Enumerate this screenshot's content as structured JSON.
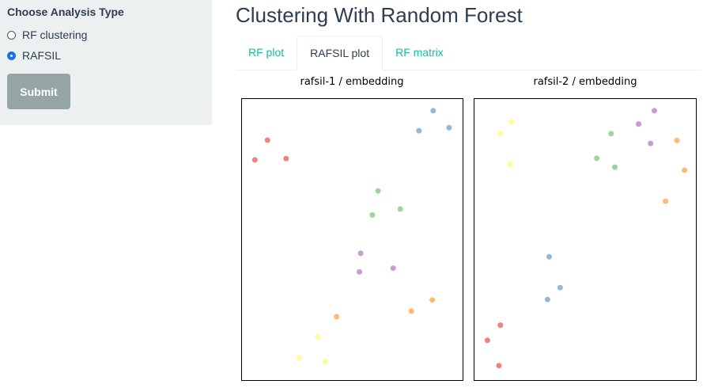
{
  "sidebar": {
    "title": "Choose Analysis Type",
    "options": [
      {
        "label": "RF clustering",
        "checked": false
      },
      {
        "label": "RAFSIL",
        "checked": true
      }
    ],
    "submit_label": "Submit"
  },
  "page": {
    "title": "Clustering With Random Forest"
  },
  "tabs": [
    {
      "label": "RF plot",
      "active": false
    },
    {
      "label": "RAFSIL plot",
      "active": true
    },
    {
      "label": "RF matrix",
      "active": false
    }
  ],
  "colors": {
    "red": "#e41a1c",
    "blue": "#377eb8",
    "green": "#4daf4a",
    "purple": "#984ea3",
    "orange": "#ff7f00",
    "yellow": "#ffff33"
  },
  "chart_data": [
    {
      "type": "scatter",
      "title": "rafsil-1 / embedding",
      "xlim": [
        0,
        1
      ],
      "ylim": [
        0,
        1
      ],
      "points": [
        {
          "x": 0.886,
          "y": 0.977,
          "color": "blue"
        },
        {
          "x": 0.962,
          "y": 0.914,
          "color": "blue"
        },
        {
          "x": 0.818,
          "y": 0.903,
          "color": "blue"
        },
        {
          "x": 0.095,
          "y": 0.868,
          "color": "red"
        },
        {
          "x": 0.035,
          "y": 0.795,
          "color": "red"
        },
        {
          "x": 0.184,
          "y": 0.8,
          "color": "red"
        },
        {
          "x": 0.623,
          "y": 0.68,
          "color": "green"
        },
        {
          "x": 0.729,
          "y": 0.613,
          "color": "green"
        },
        {
          "x": 0.596,
          "y": 0.591,
          "color": "green"
        },
        {
          "x": 0.54,
          "y": 0.449,
          "color": "purple"
        },
        {
          "x": 0.695,
          "y": 0.394,
          "color": "purple"
        },
        {
          "x": 0.534,
          "y": 0.38,
          "color": "purple"
        },
        {
          "x": 0.882,
          "y": 0.276,
          "color": "orange"
        },
        {
          "x": 0.782,
          "y": 0.235,
          "color": "orange"
        },
        {
          "x": 0.425,
          "y": 0.214,
          "color": "orange"
        },
        {
          "x": 0.336,
          "y": 0.139,
          "color": "yellow"
        },
        {
          "x": 0.246,
          "y": 0.062,
          "color": "yellow"
        },
        {
          "x": 0.371,
          "y": 0.048,
          "color": "yellow"
        }
      ]
    },
    {
      "type": "scatter",
      "title": "rafsil-2 / embedding",
      "xlim": [
        0,
        1
      ],
      "ylim": [
        0,
        1
      ],
      "points": [
        {
          "x": 0.829,
          "y": 0.977,
          "color": "purple"
        },
        {
          "x": 0.754,
          "y": 0.928,
          "color": "purple"
        },
        {
          "x": 0.811,
          "y": 0.856,
          "color": "purple"
        },
        {
          "x": 0.15,
          "y": 0.936,
          "color": "yellow"
        },
        {
          "x": 0.097,
          "y": 0.892,
          "color": "yellow"
        },
        {
          "x": 0.143,
          "y": 0.779,
          "color": "yellow"
        },
        {
          "x": 0.623,
          "y": 0.892,
          "color": "green"
        },
        {
          "x": 0.555,
          "y": 0.801,
          "color": "green"
        },
        {
          "x": 0.641,
          "y": 0.768,
          "color": "green"
        },
        {
          "x": 0.936,
          "y": 0.867,
          "color": "orange"
        },
        {
          "x": 0.972,
          "y": 0.757,
          "color": "orange"
        },
        {
          "x": 0.882,
          "y": 0.642,
          "color": "orange"
        },
        {
          "x": 0.329,
          "y": 0.436,
          "color": "blue"
        },
        {
          "x": 0.381,
          "y": 0.322,
          "color": "blue"
        },
        {
          "x": 0.321,
          "y": 0.278,
          "color": "blue"
        },
        {
          "x": 0.097,
          "y": 0.183,
          "color": "red"
        },
        {
          "x": 0.035,
          "y": 0.127,
          "color": "red"
        },
        {
          "x": 0.09,
          "y": 0.033,
          "color": "red"
        }
      ]
    }
  ]
}
